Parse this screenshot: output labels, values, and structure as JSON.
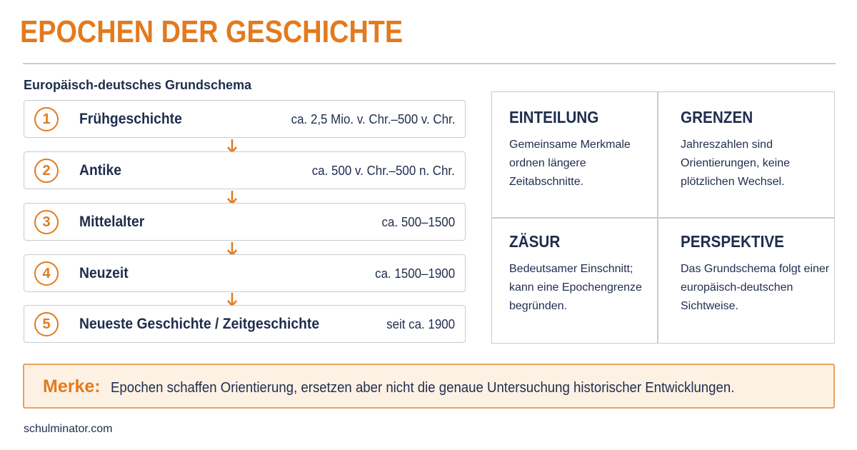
{
  "header": {
    "title": "EPOCHEN DER GESCHICHTE",
    "subtitle": "Europäisch-deutsches Grundschema"
  },
  "epochs": [
    {
      "number": "1",
      "name": "Frühgeschichte",
      "date": "ca. 2,5 Mio. v. Chr.–500 v. Chr."
    },
    {
      "number": "2",
      "name": "Antike",
      "date": "ca. 500 v. Chr.–500 n. Chr."
    },
    {
      "number": "3",
      "name": "Mittelalter",
      "date": "ca. 500–1500"
    },
    {
      "number": "4",
      "name": "Neuzeit",
      "date": "ca. 1500–1900"
    },
    {
      "number": "5",
      "name": "Neueste Geschichte / Zeitgeschichte",
      "date": "seit ca. 1900"
    }
  ],
  "concepts": [
    {
      "heading": "EINTEILUNG",
      "text": "Gemeinsame Merkmale ordnen längere Zeitabschnitte."
    },
    {
      "heading": "GRENZEN",
      "text": "Jahreszahlen sind Orientierungen, keine plötzlichen Wechsel."
    },
    {
      "heading": "ZÄSUR",
      "text": "Bedeutsamer Einschnitt; kann eine Epochengrenze begründen."
    },
    {
      "heading": "PERSPEKTIVE",
      "text": "Das Grundschema folgt einer europäisch-deutschen Sichtweise."
    }
  ],
  "note": {
    "label": "Merke:",
    "text": "Epochen schaffen Orientierung, ersetzen aber nicht die genaue Untersuchung historischer Entwicklungen."
  },
  "footer": {
    "source": "schulminator.com"
  },
  "colors": {
    "accent": "#e37a1e",
    "text": "#1f2d4d",
    "border": "#c7cbd3",
    "note_bg": "#fdf1e4"
  }
}
